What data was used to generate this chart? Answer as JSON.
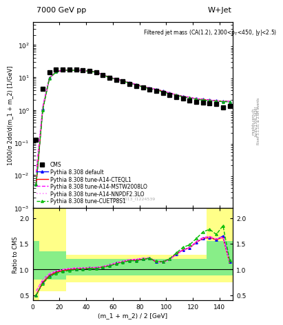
{
  "title_left": "7000 GeV pp",
  "title_right": "W+Jet",
  "plot_title": "Filtered jet mass (CA(1.2), 2300<p$_T$<450, |y|<2.5)",
  "cms_label": "CMS_2013_I1224539",
  "rivet_label": "Rivet 3.1.10, ≥ 2.6M events",
  "arxiv_label": "[arXiv:1306.3436]",
  "mcplots_label": "mcplots.cern.ch",
  "ylabel_main": "1000/σ 2dσ/d(m_1 + m_2) [1/GeV]",
  "ylabel_ratio": "Ratio to CMS",
  "xlabel": "(m_1 + m_2) / 2 [GeV]",
  "xlim": [
    0,
    150
  ],
  "ylim_main": [
    0.001,
    500
  ],
  "ylim_ratio": [
    0.4,
    2.2
  ],
  "yticks_ratio": [
    0.5,
    1.0,
    1.5,
    2.0
  ],
  "cms_x": [
    2.5,
    7.5,
    12.5,
    17.5,
    22.5,
    27.5,
    32.5,
    37.5,
    42.5,
    47.5,
    52.5,
    57.5,
    62.5,
    67.5,
    72.5,
    77.5,
    82.5,
    87.5,
    92.5,
    97.5,
    102.5,
    107.5,
    112.5,
    117.5,
    122.5,
    127.5,
    132.5,
    137.5,
    142.5,
    147.5
  ],
  "cms_y": [
    0.12,
    4.5,
    14.0,
    17.0,
    17.5,
    17.0,
    17.0,
    16.5,
    15.5,
    14.0,
    11.5,
    9.5,
    8.5,
    7.5,
    6.2,
    5.4,
    4.8,
    4.2,
    3.8,
    3.3,
    2.9,
    2.5,
    2.2,
    1.9,
    1.8,
    1.7,
    1.6,
    1.5,
    1.2,
    1.3
  ],
  "default_x": [
    2.5,
    7.5,
    12.5,
    17.5,
    22.5,
    27.5,
    32.5,
    37.5,
    42.5,
    47.5,
    52.5,
    57.5,
    62.5,
    67.5,
    72.5,
    77.5,
    82.5,
    87.5,
    92.5,
    97.5,
    102.5,
    107.5,
    112.5,
    117.5,
    122.5,
    127.5,
    132.5,
    137.5,
    142.5,
    147.5
  ],
  "default_y": [
    0.005,
    1.1,
    9.5,
    14.8,
    16.5,
    16.8,
    16.5,
    16.0,
    15.5,
    14.5,
    12.0,
    10.0,
    8.8,
    7.8,
    6.8,
    6.0,
    5.2,
    4.7,
    4.2,
    3.8,
    3.3,
    2.9,
    2.6,
    2.4,
    2.2,
    2.1,
    2.0,
    1.9,
    1.85,
    1.8
  ],
  "cteql1_y": [
    0.005,
    1.1,
    9.5,
    14.8,
    16.5,
    16.8,
    16.5,
    16.0,
    15.5,
    14.5,
    12.0,
    10.0,
    8.8,
    7.8,
    6.8,
    6.0,
    5.2,
    4.7,
    4.2,
    3.8,
    3.3,
    2.9,
    2.6,
    2.4,
    2.2,
    2.1,
    2.0,
    1.9,
    1.85,
    1.8
  ],
  "mstw_y": [
    0.012,
    1.3,
    9.6,
    14.9,
    16.5,
    16.8,
    16.5,
    16.0,
    15.5,
    14.5,
    12.0,
    10.0,
    8.8,
    7.8,
    6.8,
    6.0,
    5.2,
    4.7,
    4.2,
    3.8,
    3.3,
    2.9,
    2.6,
    2.4,
    2.2,
    2.1,
    2.0,
    1.9,
    1.85,
    1.8
  ],
  "nnpdf_y": [
    0.012,
    1.3,
    9.6,
    14.9,
    16.5,
    16.8,
    16.5,
    16.0,
    15.5,
    14.5,
    12.0,
    10.0,
    8.8,
    7.8,
    6.8,
    6.0,
    5.2,
    4.7,
    4.2,
    3.8,
    3.3,
    2.9,
    2.6,
    2.4,
    2.2,
    2.1,
    2.0,
    1.9,
    1.85,
    1.8
  ],
  "cuetp_y": [
    0.005,
    1.0,
    9.3,
    14.6,
    16.3,
    16.6,
    16.3,
    15.8,
    15.3,
    14.3,
    11.8,
    9.8,
    8.6,
    7.6,
    6.6,
    5.8,
    5.0,
    4.5,
    4.0,
    3.6,
    3.1,
    2.8,
    2.5,
    2.3,
    2.1,
    2.0,
    1.9,
    1.85,
    1.8,
    1.75
  ],
  "ratio_x": [
    2.5,
    7.5,
    12.5,
    17.5,
    22.5,
    27.5,
    32.5,
    37.5,
    42.5,
    47.5,
    52.5,
    57.5,
    62.5,
    67.5,
    72.5,
    77.5,
    82.5,
    87.5,
    92.5,
    97.5,
    102.5,
    107.5,
    112.5,
    117.5,
    122.5,
    127.5,
    132.5,
    137.5,
    142.5,
    147.5
  ],
  "ratio_default": [
    0.5,
    0.75,
    0.88,
    0.95,
    0.98,
    1.0,
    1.01,
    1.02,
    1.03,
    1.03,
    1.05,
    1.08,
    1.12,
    1.15,
    1.18,
    1.18,
    1.2,
    1.22,
    1.15,
    1.15,
    1.2,
    1.3,
    1.38,
    1.42,
    1.53,
    1.6,
    1.62,
    1.58,
    1.65,
    1.15
  ],
  "ratio_cteql1": [
    0.5,
    0.75,
    0.88,
    0.95,
    0.98,
    1.0,
    1.01,
    1.02,
    1.03,
    1.03,
    1.05,
    1.08,
    1.12,
    1.15,
    1.18,
    1.18,
    1.2,
    1.22,
    1.15,
    1.15,
    1.2,
    1.3,
    1.38,
    1.42,
    1.53,
    1.6,
    1.62,
    1.58,
    1.62,
    1.13
  ],
  "ratio_mstw": [
    0.58,
    0.8,
    0.92,
    0.97,
    1.0,
    1.02,
    1.03,
    1.03,
    1.04,
    1.04,
    1.06,
    1.09,
    1.13,
    1.16,
    1.19,
    1.2,
    1.22,
    1.23,
    1.16,
    1.15,
    1.2,
    1.3,
    1.38,
    1.43,
    1.54,
    1.62,
    1.64,
    1.59,
    1.63,
    1.14
  ],
  "ratio_nnpdf": [
    0.58,
    0.8,
    0.92,
    0.97,
    1.0,
    1.02,
    1.03,
    1.03,
    1.04,
    1.04,
    1.06,
    1.09,
    1.13,
    1.16,
    1.19,
    1.2,
    1.22,
    1.23,
    1.16,
    1.12,
    1.18,
    1.28,
    1.36,
    1.42,
    1.53,
    1.6,
    1.62,
    1.6,
    1.62,
    1.13
  ],
  "ratio_cuetp": [
    0.5,
    0.73,
    0.86,
    0.93,
    0.96,
    0.98,
    1.0,
    1.01,
    1.02,
    1.02,
    1.04,
    1.07,
    1.11,
    1.14,
    1.17,
    1.17,
    1.2,
    1.22,
    1.16,
    1.15,
    1.21,
    1.32,
    1.43,
    1.48,
    1.6,
    1.73,
    1.78,
    1.68,
    1.85,
    1.18
  ],
  "color_default": "#0000ff",
  "color_cteql1": "#ff0000",
  "color_mstw": "#ff00ff",
  "color_nnpdf": "#ff88ff",
  "color_cuetp": "#00bb00",
  "color_cms": "#000000",
  "color_yellow": "#ffff88",
  "color_green": "#88ee88",
  "bg_color": "#ffffff"
}
